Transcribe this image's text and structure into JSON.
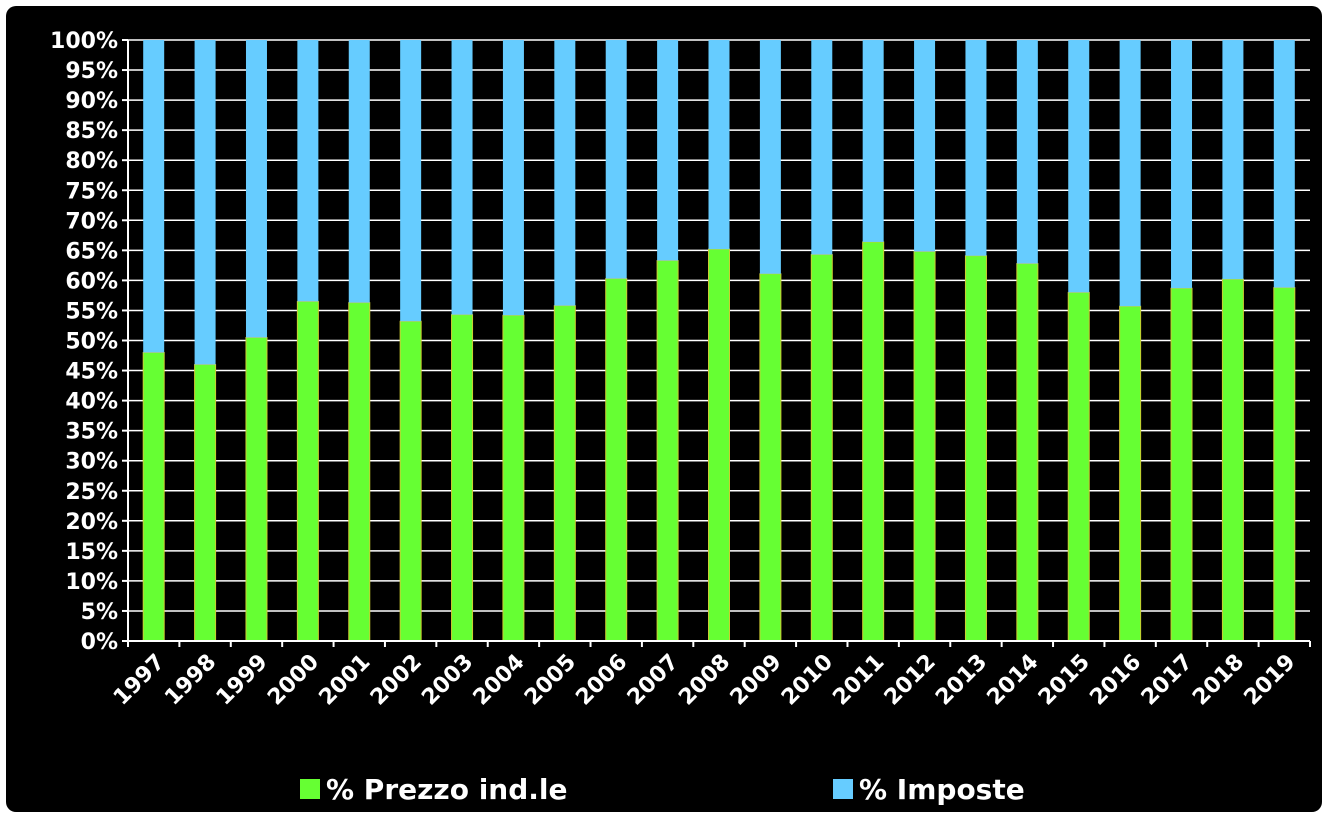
{
  "chart_data": {
    "type": "bar",
    "stacked": true,
    "normalized": true,
    "categories": [
      "1997",
      "1998",
      "1999",
      "2000",
      "2001",
      "2002",
      "2003",
      "2004",
      "2005",
      "2006",
      "2007",
      "2008",
      "2009",
      "2010",
      "2011",
      "2012",
      "2013",
      "2014",
      "2015",
      "2016",
      "2017",
      "2018",
      "2019"
    ],
    "series": [
      {
        "name": "% Prezzo ind.le",
        "color": "#66ff33",
        "values": [
          48,
          46,
          50.5,
          56.5,
          56.3,
          53.2,
          54.3,
          54.2,
          55.8,
          60.3,
          63.3,
          65.2,
          61.1,
          64.3,
          66.4,
          64.8,
          64.1,
          62.8,
          58,
          55.7,
          58.7,
          60.2,
          58.8
        ]
      },
      {
        "name": "% Imposte",
        "color": "#66ccff",
        "values": [
          52,
          54,
          49.5,
          43.5,
          43.7,
          46.8,
          45.7,
          45.8,
          44.2,
          39.7,
          36.7,
          34.8,
          38.9,
          35.7,
          33.6,
          35.2,
          35.9,
          37.2,
          42,
          44.3,
          41.3,
          39.8,
          41.2
        ]
      }
    ],
    "title": "",
    "xlabel": "",
    "ylabel": "",
    "ylim": [
      0,
      100
    ],
    "yticks": [
      "0%",
      "5%",
      "10%",
      "15%",
      "20%",
      "25%",
      "30%",
      "35%",
      "40%",
      "45%",
      "50%",
      "55%",
      "60%",
      "65%",
      "70%",
      "75%",
      "80%",
      "85%",
      "90%",
      "95%",
      "100%"
    ],
    "grid": true,
    "legend_position": "bottom",
    "background": "#000000"
  }
}
